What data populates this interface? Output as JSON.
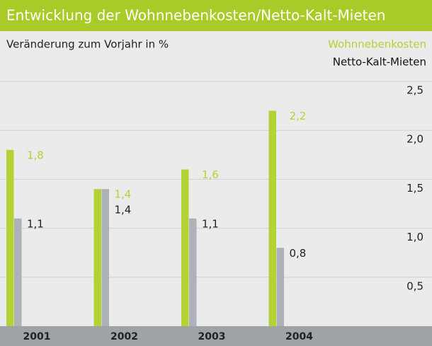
{
  "chart_data": {
    "type": "bar",
    "title": "Entwicklung der Wohnnebenkosten/Netto-Kalt-Mieten",
    "subtitle": "Veränderung zum Vorjahr in %",
    "categories": [
      "2001",
      "2002",
      "2003",
      "2004"
    ],
    "series": [
      {
        "name": "Wohnnebenkosten",
        "color": "#b3d234",
        "values": [
          1.8,
          1.4,
          1.6,
          2.2
        ],
        "value_labels": [
          "1,8",
          "1,4",
          "1,6",
          "2,2"
        ]
      },
      {
        "name": "Netto-Kalt-Mieten",
        "color": "#adb2b8",
        "values": [
          1.1,
          1.4,
          1.1,
          0.8
        ],
        "value_labels": [
          "1,1",
          "1,4",
          "1,1",
          "0,8"
        ]
      }
    ],
    "ylim": [
      0,
      2.5
    ],
    "yticks": [
      {
        "value": 0.5,
        "label": "0,5"
      },
      {
        "value": 1.0,
        "label": "1,0"
      },
      {
        "value": 1.5,
        "label": "1,5"
      },
      {
        "value": 2.0,
        "label": "2,0"
      },
      {
        "value": 2.5,
        "label": "2,5"
      }
    ],
    "grid": true,
    "legend": "top-right"
  }
}
